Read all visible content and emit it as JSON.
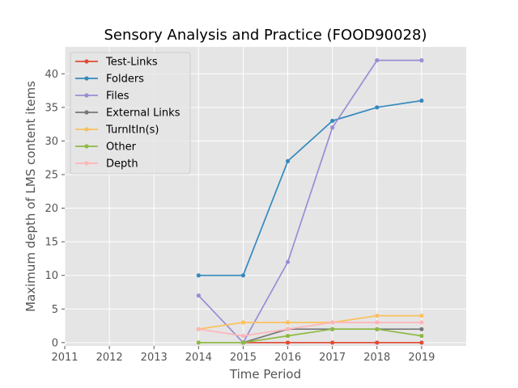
{
  "chart_data": {
    "type": "line",
    "title": "Sensory Analysis and Practice (FOOD90028)",
    "xlabel": "Time Period",
    "ylabel": "Maximum depth of LMS content items",
    "x_ticks": [
      "2011",
      "2012",
      "2013",
      "2014",
      "2015",
      "2016",
      "2017",
      "2018",
      "2019"
    ],
    "y_ticks": [
      "0",
      "5",
      "10",
      "15",
      "20",
      "25",
      "30",
      "35",
      "40"
    ],
    "xlim": [
      2011,
      2020
    ],
    "ylim": [
      -0.5,
      44
    ],
    "grid": true,
    "legend_position": "top-left",
    "x": [
      2014,
      2015,
      2016,
      2017,
      2018,
      2019
    ],
    "series": [
      {
        "name": "Test-Links",
        "color": "#E24A33",
        "values": [
          null,
          0,
          0,
          0,
          0,
          0
        ]
      },
      {
        "name": "Folders",
        "color": "#348ABD",
        "values": [
          10,
          10,
          27,
          33,
          35,
          36
        ]
      },
      {
        "name": "Files",
        "color": "#988ED5",
        "values": [
          7,
          0,
          12,
          32,
          42,
          42
        ]
      },
      {
        "name": "External Links",
        "color": "#777777",
        "values": [
          null,
          0,
          2,
          2,
          2,
          2
        ]
      },
      {
        "name": "TurnItIn(s)",
        "color": "#FBC15E",
        "values": [
          2,
          3,
          3,
          3,
          4,
          4
        ]
      },
      {
        "name": "Other",
        "color": "#8EBA42",
        "values": [
          0,
          0,
          1,
          2,
          2,
          1
        ]
      },
      {
        "name": "Depth",
        "color": "#FFB5B8",
        "values": [
          2,
          1,
          2,
          3,
          3,
          3
        ]
      }
    ]
  }
}
